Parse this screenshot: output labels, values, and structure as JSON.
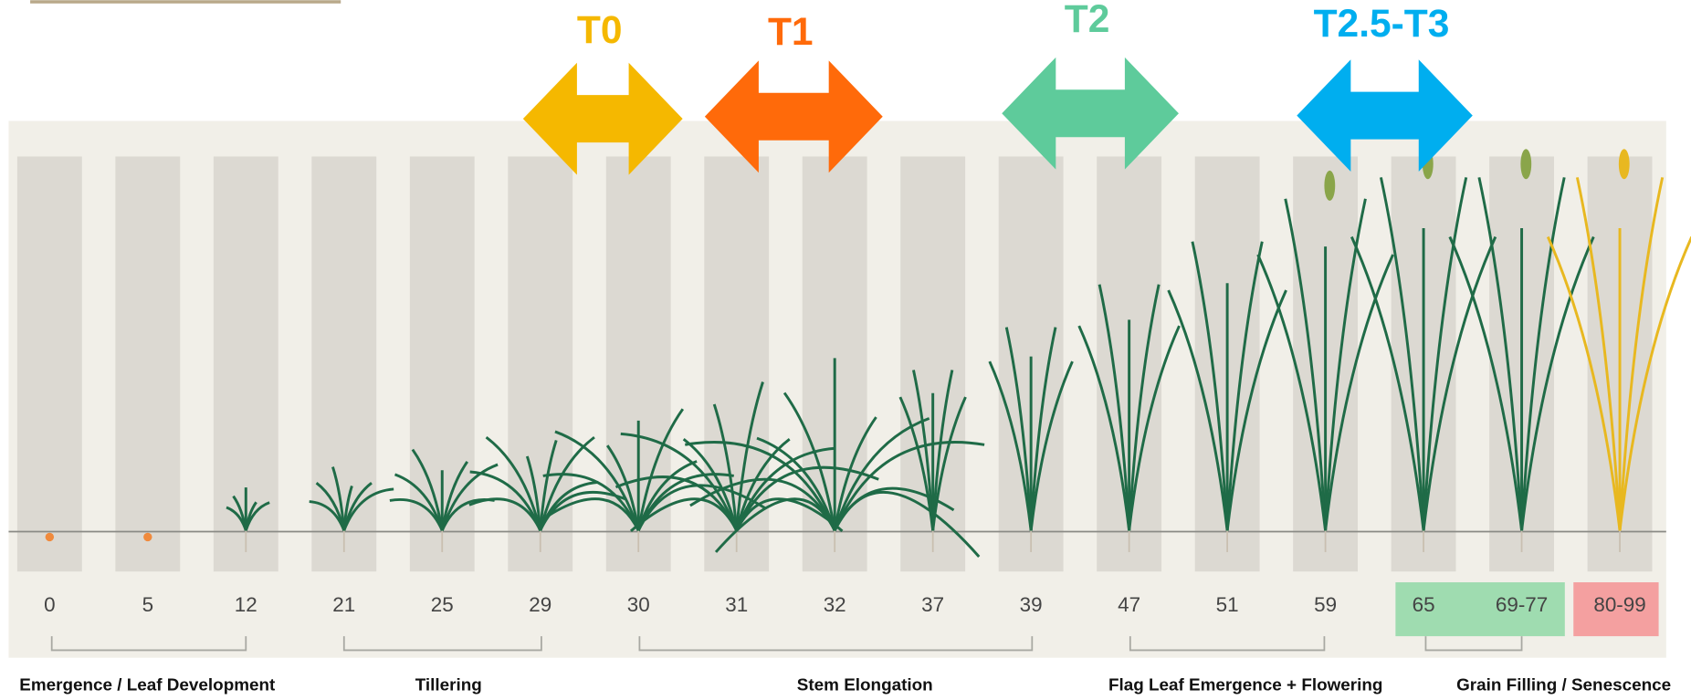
{
  "timings": [
    {
      "label": "T0",
      "color": "#f5b800"
    },
    {
      "label": "T1",
      "color": "#ff6a0a"
    },
    {
      "label": "T2",
      "color": "#5ecb9b"
    },
    {
      "label": "T2.5-T3",
      "color": "#00aeef"
    }
  ],
  "stages": [
    "0",
    "5",
    "12",
    "21",
    "25",
    "29",
    "30",
    "31",
    "32",
    "37",
    "39",
    "47",
    "51",
    "59",
    "65",
    "69-77",
    "80-99"
  ],
  "phases": [
    "Emergence / Leaf Development",
    "Tillering",
    "Stem Elongation",
    "Flag Leaf Emergence + Flowering",
    "Grain Filling / Senescence"
  ]
}
